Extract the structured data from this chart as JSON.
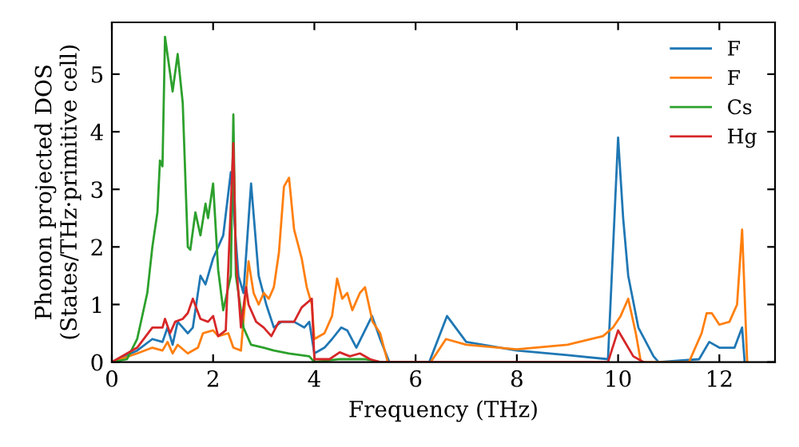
{
  "chart_data": {
    "type": "line",
    "xlabel": "Frequency (THz)",
    "ylabel": "Phonon projected DOS\n(States/THz·primitive cell)",
    "xlim": [
      0,
      13.1
    ],
    "ylim": [
      0,
      5.9
    ],
    "xticks": [
      0,
      2,
      4,
      6,
      8,
      10,
      12
    ],
    "yticks": [
      0,
      1,
      2,
      3,
      4,
      5
    ],
    "grid": false,
    "legend": "top right",
    "series": [
      {
        "name": "F",
        "color": "#1f77b4",
        "x": [
          0,
          0.5,
          0.8,
          1.0,
          1.1,
          1.2,
          1.3,
          1.5,
          1.6,
          1.75,
          1.85,
          2.0,
          2.1,
          2.2,
          2.35,
          2.5,
          2.6,
          2.75,
          2.9,
          3.05,
          3.2,
          3.35,
          3.6,
          3.8,
          3.9,
          4.0,
          4.2,
          4.35,
          4.53,
          4.65,
          4.83,
          5.14,
          5.3,
          5.48,
          6.27,
          6.62,
          7.0,
          8.0,
          9.0,
          9.8,
          10.0,
          10.1,
          10.2,
          10.4,
          10.7,
          10.8,
          11.6,
          11.8,
          12.0,
          12.3,
          12.45,
          12.5
        ],
        "values": [
          0,
          0.2,
          0.4,
          0.35,
          0.6,
          0.3,
          0.7,
          0.5,
          0.6,
          1.5,
          1.35,
          1.8,
          2.0,
          2.2,
          3.3,
          1.5,
          1.2,
          3.1,
          1.5,
          1.0,
          0.6,
          0.7,
          0.7,
          0.6,
          0.7,
          0.15,
          0.25,
          0.4,
          0.6,
          0.55,
          0.25,
          0.8,
          0.4,
          0,
          0,
          0.8,
          0.35,
          0.2,
          0.12,
          0.05,
          3.9,
          2.5,
          1.5,
          0.6,
          0.1,
          0,
          0.05,
          0.35,
          0.25,
          0.25,
          0.6,
          0
        ]
      },
      {
        "name": "F",
        "color": "#ff7f0e",
        "x": [
          0,
          0.5,
          0.8,
          1.0,
          1.1,
          1.2,
          1.3,
          1.5,
          1.7,
          1.8,
          2.0,
          2.1,
          2.3,
          2.4,
          2.55,
          2.7,
          2.8,
          2.9,
          3.0,
          3.1,
          3.2,
          3.3,
          3.4,
          3.5,
          3.6,
          3.75,
          3.85,
          3.95,
          4.0,
          4.2,
          4.35,
          4.45,
          4.55,
          4.65,
          4.75,
          4.9,
          5.0,
          5.15,
          5.3,
          5.45,
          6.3,
          6.6,
          7.0,
          8.0,
          9.0,
          9.7,
          9.9,
          10.05,
          10.2,
          10.35,
          10.45,
          11.4,
          11.65,
          11.75,
          11.85,
          12.0,
          12.2,
          12.35,
          12.45,
          12.55
        ],
        "values": [
          0,
          0.15,
          0.25,
          0.2,
          0.35,
          0.15,
          0.3,
          0.15,
          0.25,
          0.5,
          0.55,
          0.45,
          0.5,
          0.25,
          0.2,
          1.75,
          1.2,
          1.0,
          1.2,
          1.1,
          1.3,
          1.9,
          3.05,
          3.2,
          2.3,
          1.8,
          1.3,
          1.0,
          0.4,
          0.5,
          0.8,
          1.45,
          1.1,
          1.2,
          0.9,
          1.2,
          1.3,
          0.7,
          0.5,
          0,
          0,
          0.4,
          0.3,
          0.22,
          0.3,
          0.45,
          0.6,
          0.8,
          1.1,
          0.5,
          0,
          0,
          0.5,
          0.85,
          0.85,
          0.65,
          0.7,
          1.0,
          2.3,
          0
        ]
      },
      {
        "name": "Cs",
        "color": "#2ca02c",
        "x": [
          0,
          0.3,
          0.5,
          0.7,
          0.8,
          0.9,
          0.95,
          1.0,
          1.05,
          1.2,
          1.3,
          1.4,
          1.5,
          1.55,
          1.65,
          1.75,
          1.85,
          1.9,
          2.0,
          2.1,
          2.2,
          2.35,
          2.4,
          2.45,
          2.6,
          2.75,
          3.0,
          3.2,
          3.5,
          3.9,
          4.0,
          4.5,
          5.0,
          5.3
        ],
        "values": [
          0,
          0.05,
          0.4,
          1.2,
          2.0,
          2.6,
          3.5,
          3.4,
          5.65,
          4.7,
          5.35,
          4.5,
          2.0,
          1.95,
          2.6,
          2.2,
          2.75,
          2.5,
          3.1,
          1.6,
          0.9,
          1.5,
          4.3,
          1.5,
          0.6,
          0.3,
          0.25,
          0.2,
          0.15,
          0.1,
          0,
          0.05,
          0.05,
          0
        ]
      },
      {
        "name": "Hg",
        "color": "#d62728",
        "x": [
          0,
          0.5,
          0.8,
          1.0,
          1.05,
          1.15,
          1.25,
          1.4,
          1.5,
          1.6,
          1.75,
          1.9,
          2.0,
          2.1,
          2.25,
          2.4,
          2.45,
          2.55,
          2.65,
          2.7,
          2.85,
          3.0,
          3.15,
          3.3,
          3.6,
          3.75,
          3.95,
          4.0,
          4.3,
          4.5,
          4.7,
          4.9,
          5.1,
          5.3,
          9.8,
          10.0,
          10.1,
          10.3,
          10.5
        ],
        "values": [
          0,
          0.25,
          0.6,
          0.6,
          0.75,
          0.5,
          0.7,
          0.75,
          0.85,
          1.1,
          0.75,
          0.7,
          0.8,
          0.45,
          0.55,
          3.8,
          1.8,
          0.6,
          1.3,
          1.0,
          0.7,
          0.6,
          0.45,
          0.7,
          0.7,
          0.95,
          1.1,
          0.05,
          0.05,
          0.17,
          0.1,
          0.15,
          0.05,
          0,
          0,
          0.55,
          0.4,
          0.1,
          0
        ]
      }
    ]
  }
}
